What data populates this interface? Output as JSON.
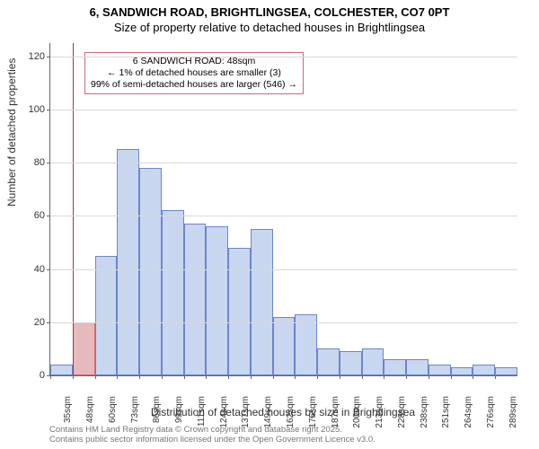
{
  "title_main": "6, SANDWICH ROAD, BRIGHTLINGSEA, COLCHESTER, CO7 0PT",
  "title_sub": "Size of property relative to detached houses in Brightlingsea",
  "y_axis_label": "Number of detached properties",
  "x_axis_label": "Distribution of detached houses by size in Brightlingsea",
  "attribution_line1": "Contains HM Land Registry data © Crown copyright and database right 2025.",
  "attribution_line2": "Contains public sector information licensed under the Open Government Licence v3.0.",
  "callout_line1": "6 SANDWICH ROAD: 48sqm",
  "callout_line2": "← 1% of detached houses are smaller (3)",
  "callout_line3": "99% of semi-detached houses are larger (546) →",
  "chart": {
    "type": "histogram",
    "xlim_index": [
      0,
      21
    ],
    "ylim": [
      0,
      125
    ],
    "ytick_step": 20,
    "yticks": [
      0,
      20,
      40,
      60,
      80,
      100,
      120
    ],
    "bar_fill": "#c9d6f0",
    "bar_stroke": "#6b86c9",
    "highlight_fill": "#e7b8bc",
    "highlight_stroke": "#c96b74",
    "grid_color": "#d8d8d8",
    "vline_color": "#b03030",
    "background_color": "#ffffff",
    "highlight_index": 1,
    "x_tick_labels": [
      "35sqm",
      "48sqm",
      "60sqm",
      "73sqm",
      "86sqm",
      "99sqm",
      "111sqm",
      "124sqm",
      "137sqm",
      "149sqm",
      "162sqm",
      "175sqm",
      "187sqm",
      "200sqm",
      "213sqm",
      "228sqm",
      "238sqm",
      "251sqm",
      "264sqm",
      "276sqm",
      "289sqm"
    ],
    "values": [
      4,
      20,
      45,
      85,
      78,
      62,
      57,
      56,
      48,
      55,
      22,
      23,
      10,
      9,
      10,
      6,
      6,
      4,
      3,
      4,
      3
    ],
    "title_fontsize": 13,
    "label_fontsize": 12,
    "tick_fontsize": 11
  }
}
